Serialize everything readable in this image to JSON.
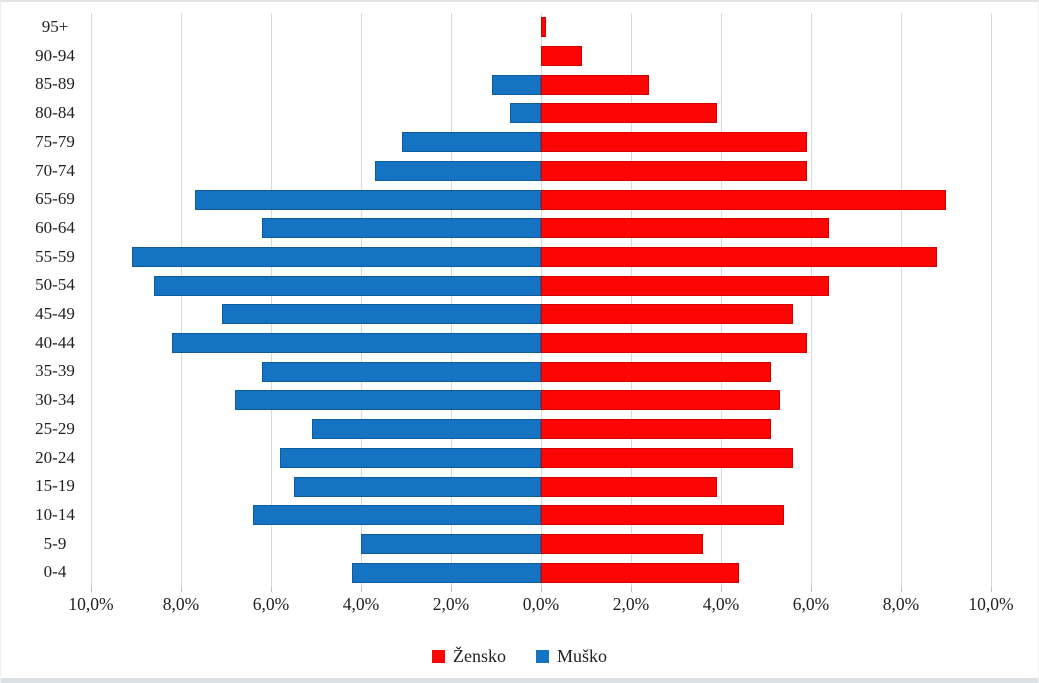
{
  "chart_data": {
    "type": "bar",
    "subtype": "population-pyramid",
    "orientation": "horizontal",
    "title": "",
    "xlabel": "",
    "ylabel": "",
    "categories": [
      "95+",
      "90-94",
      "85-89",
      "80-84",
      "75-79",
      "70-74",
      "65-69",
      "60-64",
      "55-59",
      "50-54",
      "45-49",
      "40-44",
      "35-39",
      "30-34",
      "25-29",
      "20-24",
      "15-19",
      "10-14",
      "5-9",
      "0-4"
    ],
    "series": [
      {
        "name": "Žensko",
        "side": "right",
        "color": "#FB0505",
        "border_color": "#D40000",
        "values": [
          0.1,
          0.9,
          2.4,
          3.9,
          5.9,
          5.9,
          9.0,
          6.4,
          8.8,
          6.4,
          5.6,
          5.9,
          5.1,
          5.3,
          5.1,
          5.6,
          3.9,
          5.4,
          3.6,
          4.4
        ]
      },
      {
        "name": "Muško",
        "side": "left",
        "color": "#1473C2",
        "border_color": "#0E5C9C",
        "values": [
          0.0,
          0.0,
          1.1,
          0.7,
          3.1,
          3.7,
          7.7,
          6.2,
          9.1,
          8.6,
          7.1,
          8.2,
          6.2,
          6.8,
          5.1,
          5.8,
          5.5,
          6.4,
          4.0,
          4.2
        ]
      }
    ],
    "x_axis": {
      "min": -10,
      "max": 10,
      "tick_step": 2,
      "unit": "%",
      "decimal_separator": ",",
      "tick_labels": [
        "10,0%",
        "8,0%",
        "6,0%",
        "4,0%",
        "2,0%",
        "0,0%",
        "2,0%",
        "4,0%",
        "6,0%",
        "8,0%",
        "10,0%"
      ]
    },
    "grid": true,
    "gridline_color": "#D9D9D9",
    "tick_color": "#C0C0C0",
    "text_color": "#212121",
    "legend": {
      "position": "bottom",
      "items": [
        "Žensko",
        "Muško"
      ]
    }
  }
}
